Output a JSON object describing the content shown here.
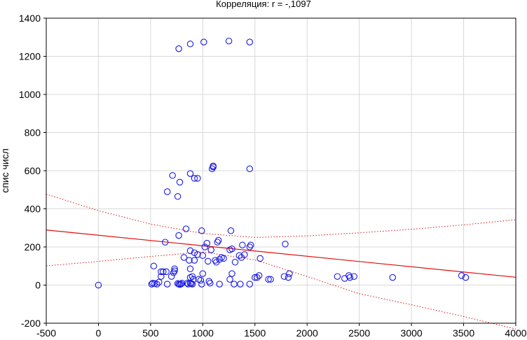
{
  "chart_data": {
    "type": "scatter",
    "title": "Корреляция: r =  -,1097",
    "xlabel": "",
    "ylabel": "спис числ",
    "xlim": [
      -500,
      4000
    ],
    "ylim": [
      -200,
      1400
    ],
    "xticks": [
      "-500",
      "0",
      "500",
      "1000",
      "1500",
      "2000",
      "2500",
      "3000",
      "3500",
      "4000"
    ],
    "yticks": [
      "-200",
      "0",
      "200",
      "400",
      "600",
      "800",
      "1000",
      "1200",
      "1400"
    ],
    "grid": true,
    "colors": {
      "points": "#1a1ae6",
      "regression": "#e01010",
      "grid": "#d8d8d8"
    },
    "regression": {
      "x": [
        -500,
        4000
      ],
      "y": [
        289,
        41
      ]
    },
    "confidence_upper": {
      "x": [
        -500,
        0,
        500,
        1000,
        1500,
        2000,
        2500,
        3000,
        3500,
        4000
      ],
      "y": [
        477,
        390,
        320,
        271,
        250,
        258,
        274,
        293,
        316,
        343
      ]
    },
    "confidence_lower": {
      "x": [
        -500,
        0,
        500,
        1000,
        1500,
        2000,
        2500,
        3000,
        3500,
        4000
      ],
      "y": [
        101,
        124,
        150,
        174,
        132,
        45,
        -45,
        -103,
        -165,
        -230
      ]
    },
    "points": {
      "x": [
        0,
        510,
        520,
        540,
        560,
        580,
        600,
        620,
        650,
        660,
        700,
        720,
        730,
        760,
        770,
        780,
        790,
        800,
        820,
        850,
        860,
        870,
        880,
        880,
        890,
        900,
        900,
        910,
        920,
        920,
        950,
        960,
        980,
        990,
        1000,
        1000,
        1020,
        1040,
        1050,
        1060,
        1070,
        1080,
        1100,
        1130,
        1150,
        1160,
        1180,
        1200,
        1260,
        1270,
        1280,
        1280,
        1300,
        1310,
        1350,
        1360,
        1380,
        1400,
        1450,
        1450,
        1500,
        1520,
        1540,
        1550,
        1630,
        1650,
        1780,
        1790,
        1820,
        1830,
        2290,
        2360,
        2400,
        2410,
        2450,
        2820,
        3480,
        3520,
        530,
        730,
        880,
        990,
        1120,
        880,
        770,
        1140,
        1160,
        600,
        640,
        780,
        840,
        1260,
        1370,
        1460,
        660,
        710,
        760,
        880,
        920,
        950,
        1090,
        1100,
        1450,
        770,
        880,
        1010,
        1250,
        1450
      ],
      "y": [
        0,
        5,
        10,
        8,
        5,
        15,
        45,
        70,
        70,
        5,
        45,
        65,
        75,
        8,
        5,
        3,
        5,
        10,
        145,
        10,
        5,
        130,
        40,
        85,
        8,
        5,
        45,
        30,
        130,
        170,
        160,
        30,
        25,
        5,
        60,
        155,
        200,
        220,
        125,
        20,
        10,
        185,
        625,
        120,
        235,
        135,
        145,
        140,
        30,
        285,
        60,
        190,
        5,
        120,
        155,
        5,
        210,
        160,
        200,
        5,
        40,
        40,
        50,
        140,
        30,
        30,
        45,
        215,
        40,
        60,
        45,
        35,
        50,
        40,
        45,
        40,
        50,
        40,
        100,
        85,
        10,
        285,
        130,
        180,
        260,
        225,
        5,
        70,
        225,
        540,
        295,
        185,
        145,
        210,
        490,
        575,
        465,
        585,
        560,
        560,
        610,
        620,
        610,
        1240,
        1265,
        1275,
        1280,
        1275
      ]
    }
  }
}
